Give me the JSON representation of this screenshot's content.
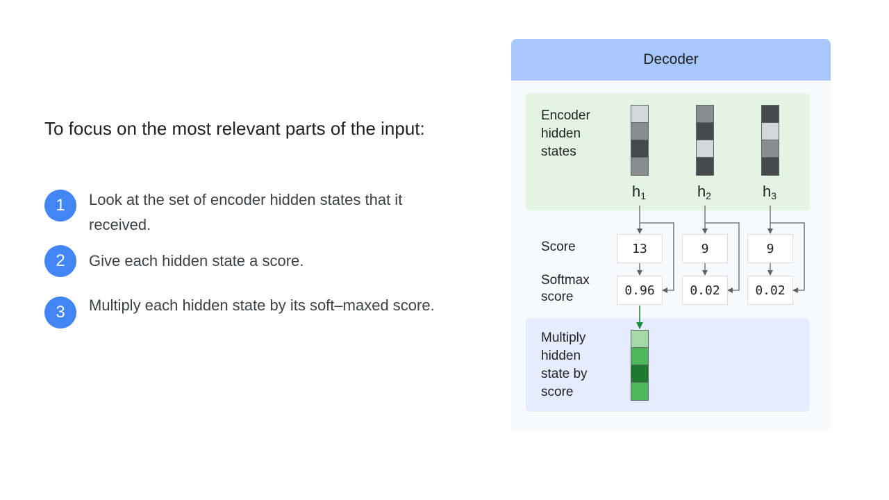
{
  "left": {
    "heading": "To focus on the most relevant parts of the input:",
    "steps": [
      {
        "number": "1",
        "text": "Look at the set of encoder hidden states that it received."
      },
      {
        "number": "2",
        "text": "Give each hidden state a score."
      },
      {
        "number": "3",
        "text": "Multiply each hidden state by its soft–maxed score."
      }
    ]
  },
  "diagram": {
    "title": "Decoder",
    "labels": {
      "encoder_hidden_states": "Encoder hidden states",
      "score": "Score",
      "softmax_score": "Softmax score",
      "multiply": "Multiply hidden state by score"
    },
    "hidden_states": [
      {
        "name": "h",
        "index": "1",
        "score": "13",
        "softmax": "0.96",
        "cells": [
          "#d6d7da",
          "#8a8c90",
          "#47494d",
          "#8a8c90"
        ]
      },
      {
        "name": "h",
        "index": "2",
        "score": "9",
        "softmax": "0.02",
        "cells": [
          "#8a8c90",
          "#47494d",
          "#d6d7da",
          "#47494d"
        ]
      },
      {
        "name": "h",
        "index": "3",
        "score": "9",
        "softmax": "0.02",
        "cells": [
          "#47494d",
          "#d6d7da",
          "#8a8c90",
          "#47494d"
        ]
      }
    ],
    "result_cells": [
      "#a3d9a5",
      "#4fb85a",
      "#1e7a2c",
      "#4fb85a"
    ],
    "colors": {
      "header": "#a8c7fa",
      "encoder_bg": "#e3f4e2",
      "multiply_bg": "#e5ecfd",
      "accent": "#4285f4",
      "green_arrow": "#1e8e3e"
    }
  }
}
